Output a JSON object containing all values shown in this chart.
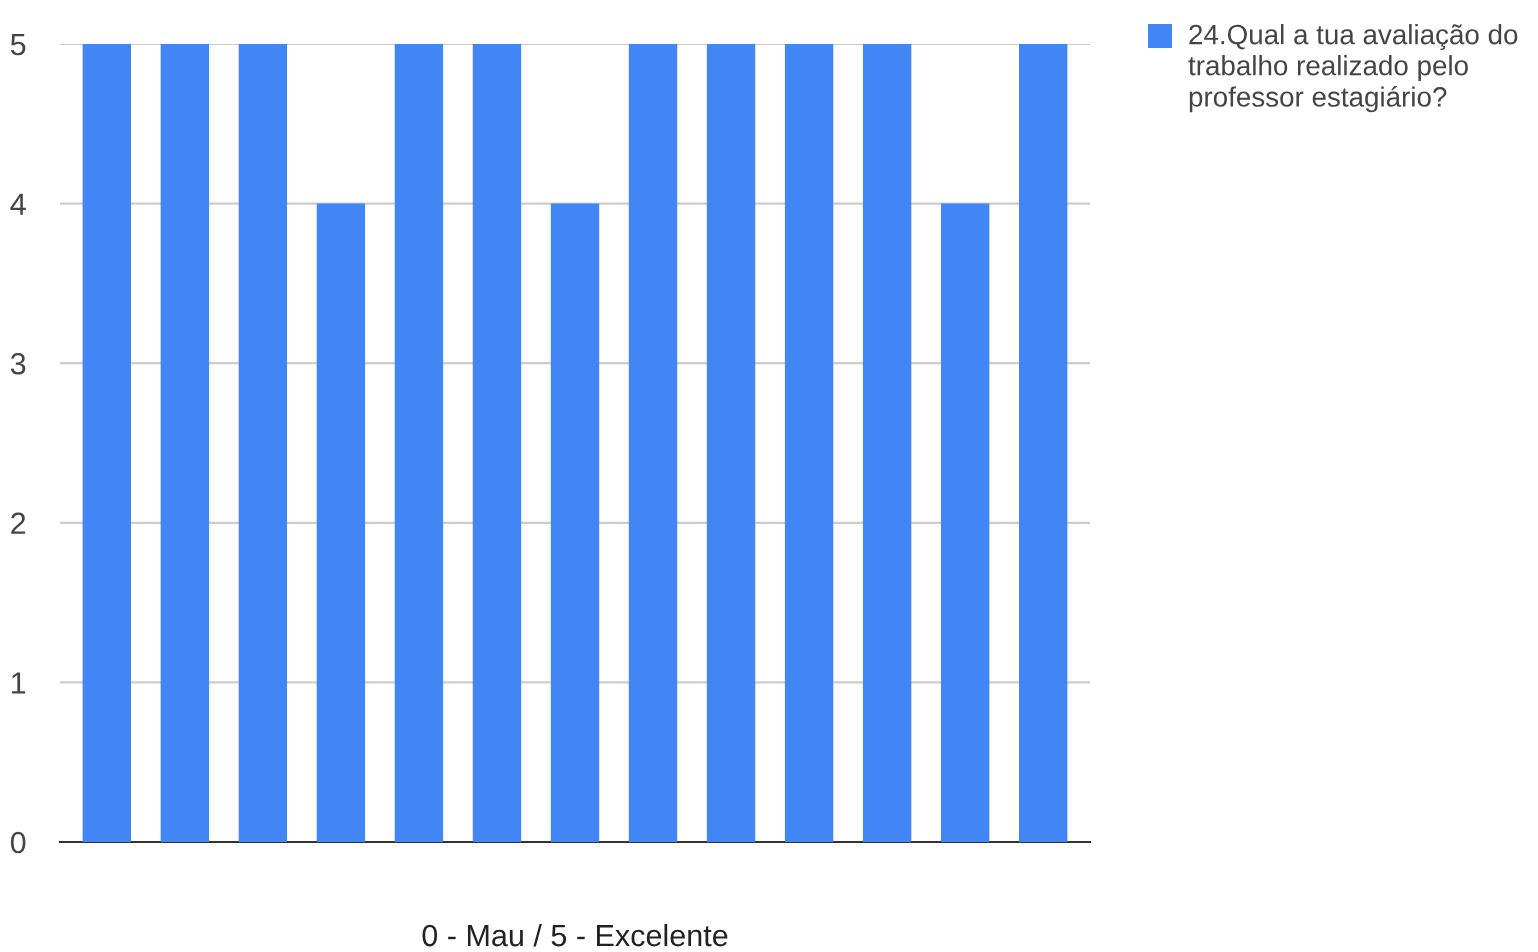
{
  "chart_data": {
    "type": "bar",
    "categories": [
      null,
      null,
      null,
      null,
      null,
      null,
      null,
      null,
      null,
      null,
      null,
      null,
      null
    ],
    "series": [
      {
        "name": "24.Qual a tua avaliação do trabalho realizado pelo professor estagiário?",
        "color": "#4285f4",
        "values": [
          5,
          5,
          5,
          4,
          5,
          5,
          4,
          5,
          5,
          5,
          5,
          4,
          5
        ]
      }
    ],
    "xlabel": "0 - Mau / 5 - Excelente",
    "ylim": [
      0,
      5
    ],
    "yticks": [
      0,
      1,
      2,
      3,
      4,
      5
    ],
    "grid": "y",
    "legend": "top right"
  }
}
